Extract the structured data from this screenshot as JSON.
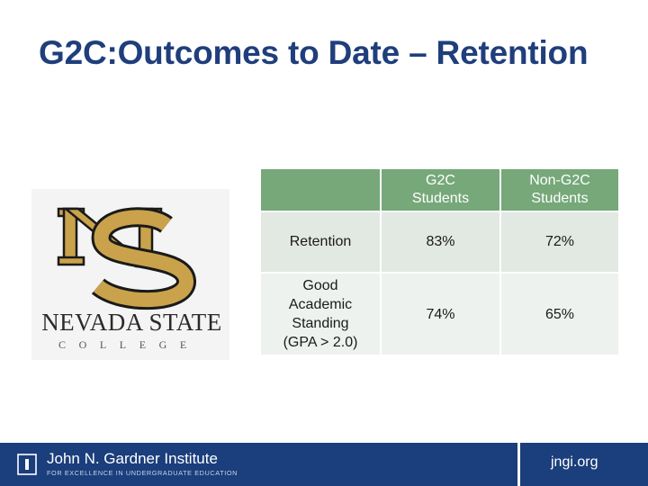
{
  "slide": {
    "title": "G2C:Outcomes to Date – Retention"
  },
  "logo": {
    "name": "Nevada State",
    "subtitle": "COLLEGE",
    "colors": {
      "gold": "#c9a24b",
      "black": "#1a1a1a"
    }
  },
  "table": {
    "columns": [
      "",
      "G2C Students",
      "Non-G2C Students"
    ],
    "rows": [
      {
        "label": "Retention",
        "g2c": "83%",
        "non_g2c": "72%"
      },
      {
        "label": "Good Academic Standing (GPA > 2.0)",
        "g2c": "74%",
        "non_g2c": "65%"
      }
    ],
    "colors": {
      "header": "#76a879",
      "row": "#e2e8e2",
      "row_alt": "#eef2ee"
    }
  },
  "footer": {
    "institute_name": "John N. Gardner Institute",
    "institute_tagline": "FOR EXCELLENCE IN UNDERGRADUATE EDUCATION",
    "link": "jngi.org",
    "background": "#1b3e7c"
  }
}
